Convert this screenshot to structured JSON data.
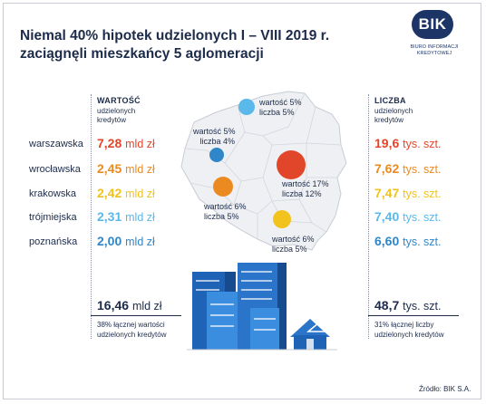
{
  "title_line1": "Niemal 40% hipotek udzielonych I – VIII 2019 r.",
  "title_line2": "zaciągnęli mieszkańcy 5 aglomeracji",
  "logo": {
    "badge": "BIK",
    "subtitle": "BIURO INFORMACJI KREDYTOWEJ"
  },
  "value_column": {
    "heading": "WARTOŚĆ",
    "sub1": "udzielonych",
    "sub2": "kredytów"
  },
  "count_column": {
    "heading": "LICZBA",
    "sub1": "udzielonych",
    "sub2": "kredytów"
  },
  "rows": [
    {
      "city": "warszawska",
      "value": "7,28",
      "value_unit": "mld zł",
      "count": "19,6",
      "count_unit": "tys. szt.",
      "color": "#e2462a"
    },
    {
      "city": "wrocławska",
      "value": "2,45",
      "value_unit": "mld zł",
      "count": "7,62",
      "count_unit": "tys. szt.",
      "color": "#ec8a22"
    },
    {
      "city": "krakowska",
      "value": "2,42",
      "value_unit": "mld zł",
      "count": "7,47",
      "count_unit": "tys. szt.",
      "color": "#f2c21d"
    },
    {
      "city": "trójmiejska",
      "value": "2,31",
      "value_unit": "mld zł",
      "count": "7,40",
      "count_unit": "tys. szt.",
      "color": "#5ab8ea"
    },
    {
      "city": "poznańska",
      "value": "2,00",
      "value_unit": "mld zł",
      "count": "6,60",
      "count_unit": "tys. szt.",
      "color": "#2f86c8"
    }
  ],
  "totals": {
    "value": "16,46",
    "value_unit": "mld zł",
    "value_note1": "38% łącznej wartości",
    "value_note2": "udzielonych kredytów",
    "count": "48,7",
    "count_unit": "tys. szt.",
    "count_note1": "31% łącznej liczby",
    "count_note2": "udzielonych kredytów"
  },
  "map_labels": {
    "gdansk_value": "wartość 5%",
    "gdansk_count": "liczba 5%",
    "poznan_value": "wartość 5%",
    "poznan_count": "liczba 4%",
    "warszawa_value": "wartość 17%",
    "warszawa_count": "liczba 12%",
    "wroclaw_value": "wartość 6%",
    "wroclaw_count": "liczba 5%",
    "krakow_value": "wartość 6%",
    "krakow_count": "liczba 5%"
  },
  "source": "Źródło: BIK S.A.",
  "colors": {
    "navy": "#1c2b4a",
    "map_fill": "#eef0f3",
    "building_blue": "#1f63b6",
    "building_light": "#3b8de0"
  }
}
